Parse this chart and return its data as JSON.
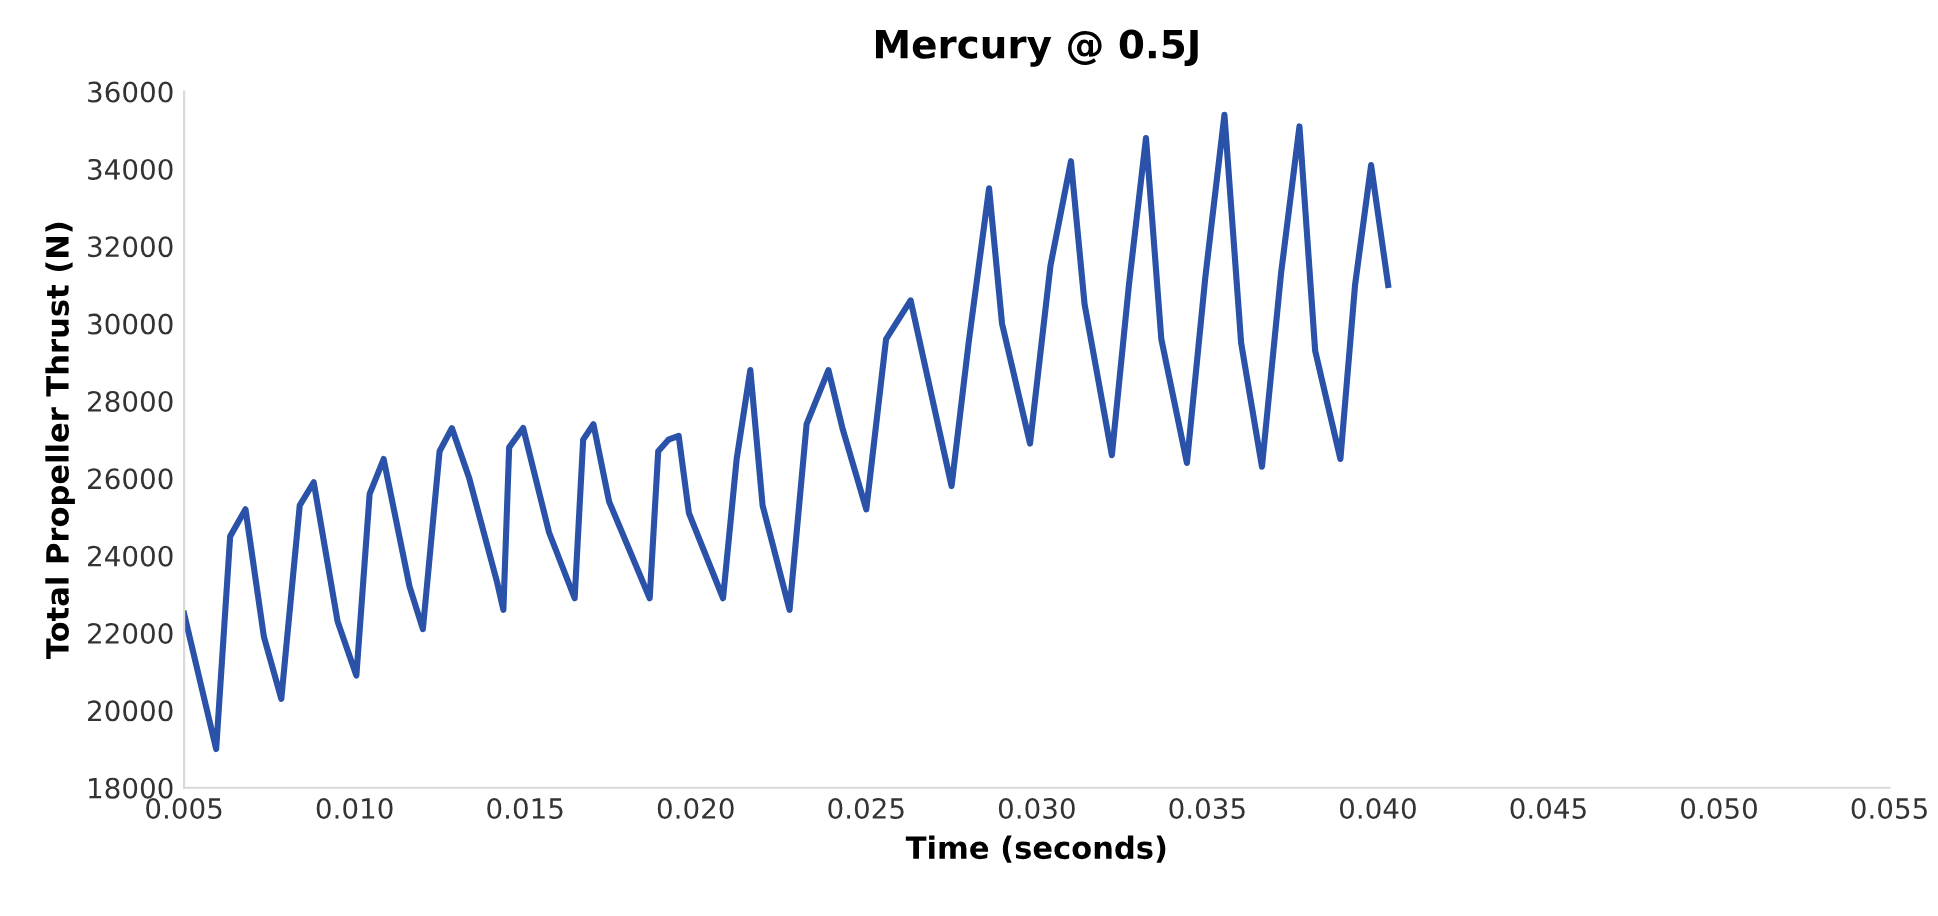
{
  "chart_data": {
    "type": "line",
    "title": "Mercury @ 0.5J",
    "xlabel": "Time (seconds)",
    "ylabel": "Total Propeller Thrust (N)",
    "xlim": [
      0.005,
      0.055
    ],
    "xticks": [
      {
        "value": 0.005,
        "label": "0.005"
      },
      {
        "value": 0.01,
        "label": "0.010"
      },
      {
        "value": 0.015,
        "label": "0.015"
      },
      {
        "value": 0.02,
        "label": "0.020"
      },
      {
        "value": 0.025,
        "label": "0.025"
      },
      {
        "value": 0.03,
        "label": "0.030"
      },
      {
        "value": 0.035,
        "label": "0.035"
      },
      {
        "value": 0.04,
        "label": "0.040"
      },
      {
        "value": 0.045,
        "label": "0.045"
      },
      {
        "value": 0.05,
        "label": "0.050"
      },
      {
        "value": 0.055,
        "label": "0.055"
      }
    ],
    "ylim": [
      18000,
      36000
    ],
    "yticks": [
      18000,
      20000,
      22000,
      24000,
      26000,
      28000,
      30000,
      32000,
      34000,
      36000
    ],
    "grid": false,
    "series": [
      {
        "color": "#2a52a8",
        "x": [
          0.005,
          0.00594,
          0.00635,
          0.0068,
          0.00734,
          0.00785,
          0.00839,
          0.0088,
          0.0095,
          0.01005,
          0.01044,
          0.01085,
          0.01161,
          0.012,
          0.01249,
          0.01285,
          0.01336,
          0.01418,
          0.01436,
          0.01453,
          0.01494,
          0.0157,
          0.01645,
          0.0167,
          0.017,
          0.01746,
          0.01865,
          0.0189,
          0.0192,
          0.0195,
          0.0198,
          0.0208,
          0.0212,
          0.0216,
          0.02196,
          0.02275,
          0.02325,
          0.02389,
          0.0243,
          0.025,
          0.02558,
          0.0263,
          0.0275,
          0.028,
          0.0286,
          0.02898,
          0.0298,
          0.0304,
          0.031,
          0.0314,
          0.0322,
          0.0327,
          0.0332,
          0.03365,
          0.0344,
          0.03494,
          0.0355,
          0.03599,
          0.0366,
          0.03716,
          0.0377,
          0.03816,
          0.0389,
          0.03933,
          0.0398,
          0.0403
        ],
        "values": [
          22500,
          19000,
          24500,
          25200,
          21900,
          20300,
          25300,
          25900,
          22300,
          20900,
          25600,
          26500,
          23200,
          22100,
          26700,
          27300,
          26000,
          23300,
          22600,
          26800,
          27300,
          24600,
          22900,
          27000,
          27400,
          25400,
          22900,
          26700,
          27000,
          27100,
          25100,
          22900,
          26500,
          28800,
          25300,
          22600,
          27400,
          28800,
          27300,
          25200,
          29600,
          30600,
          25800,
          29500,
          33500,
          30000,
          26900,
          31500,
          34200,
          30500,
          26600,
          31000,
          34800,
          29600,
          26400,
          31200,
          35400,
          29500,
          26300,
          31300,
          35100,
          29300,
          26500,
          31000,
          34100,
          31000
        ]
      }
    ]
  }
}
